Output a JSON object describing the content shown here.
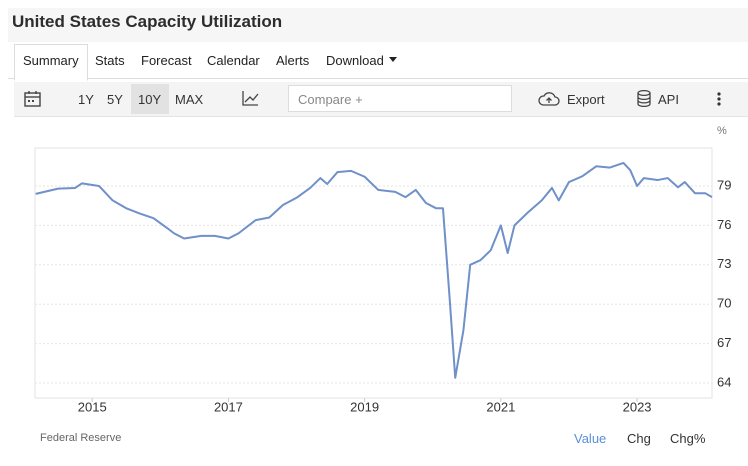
{
  "header": {
    "title": "United States Capacity Utilization"
  },
  "tabs": [
    "Summary",
    "Stats",
    "Forecast",
    "Calendar",
    "Alerts",
    "Download"
  ],
  "toolbar": {
    "ranges": [
      "1Y",
      "5Y",
      "10Y",
      "MAX"
    ],
    "compare": "Compare +",
    "export": "Export",
    "api": "API"
  },
  "chart_data": {
    "type": "line",
    "unit": "%",
    "color": "#6f90c8",
    "x": [
      2014.17,
      2014.5,
      2014.75,
      2014.85,
      2015.1,
      2015.3,
      2015.5,
      2015.7,
      2015.9,
      2016.1,
      2016.2,
      2016.35,
      2016.6,
      2016.8,
      2017.0,
      2017.15,
      2017.4,
      2017.6,
      2017.8,
      2018.0,
      2018.2,
      2018.35,
      2018.45,
      2018.6,
      2018.8,
      2019.0,
      2019.2,
      2019.45,
      2019.6,
      2019.75,
      2019.9,
      2020.05,
      2020.15,
      2020.25,
      2020.33,
      2020.45,
      2020.55,
      2020.7,
      2020.85,
      2021.0,
      2021.1,
      2021.2,
      2021.4,
      2021.6,
      2021.75,
      2021.85,
      2022.0,
      2022.2,
      2022.4,
      2022.6,
      2022.8,
      2022.9,
      2023.0,
      2023.1,
      2023.3,
      2023.45,
      2023.6,
      2023.7,
      2023.85,
      2024.0,
      2024.1
    ],
    "values": [
      78.4,
      78.8,
      78.85,
      79.2,
      79.0,
      77.9,
      77.3,
      76.9,
      76.55,
      75.8,
      75.4,
      75.0,
      75.2,
      75.2,
      75.0,
      75.4,
      76.4,
      76.6,
      77.55,
      78.1,
      78.85,
      79.6,
      79.15,
      80.05,
      80.15,
      79.7,
      78.7,
      78.55,
      78.15,
      78.7,
      77.7,
      77.3,
      77.3,
      70.3,
      64.4,
      68.0,
      73.0,
      73.35,
      74.1,
      76.0,
      73.9,
      76.0,
      77.0,
      77.9,
      78.85,
      77.9,
      79.3,
      79.75,
      80.5,
      80.4,
      80.75,
      80.2,
      79.0,
      79.6,
      79.45,
      79.6,
      78.9,
      79.3,
      78.45,
      78.45,
      78.15
    ],
    "xlim": [
      2014.16,
      2024.1
    ],
    "xticks": [
      2015,
      2017,
      2019,
      2021,
      2023
    ],
    "ylim": [
      62.86,
      81.89
    ],
    "yticks": [
      64,
      67,
      70,
      73,
      76,
      79
    ],
    "grid": true
  },
  "footer": {
    "source": "Federal Reserve",
    "views": [
      "Value",
      "Chg",
      "Chg%"
    ]
  }
}
